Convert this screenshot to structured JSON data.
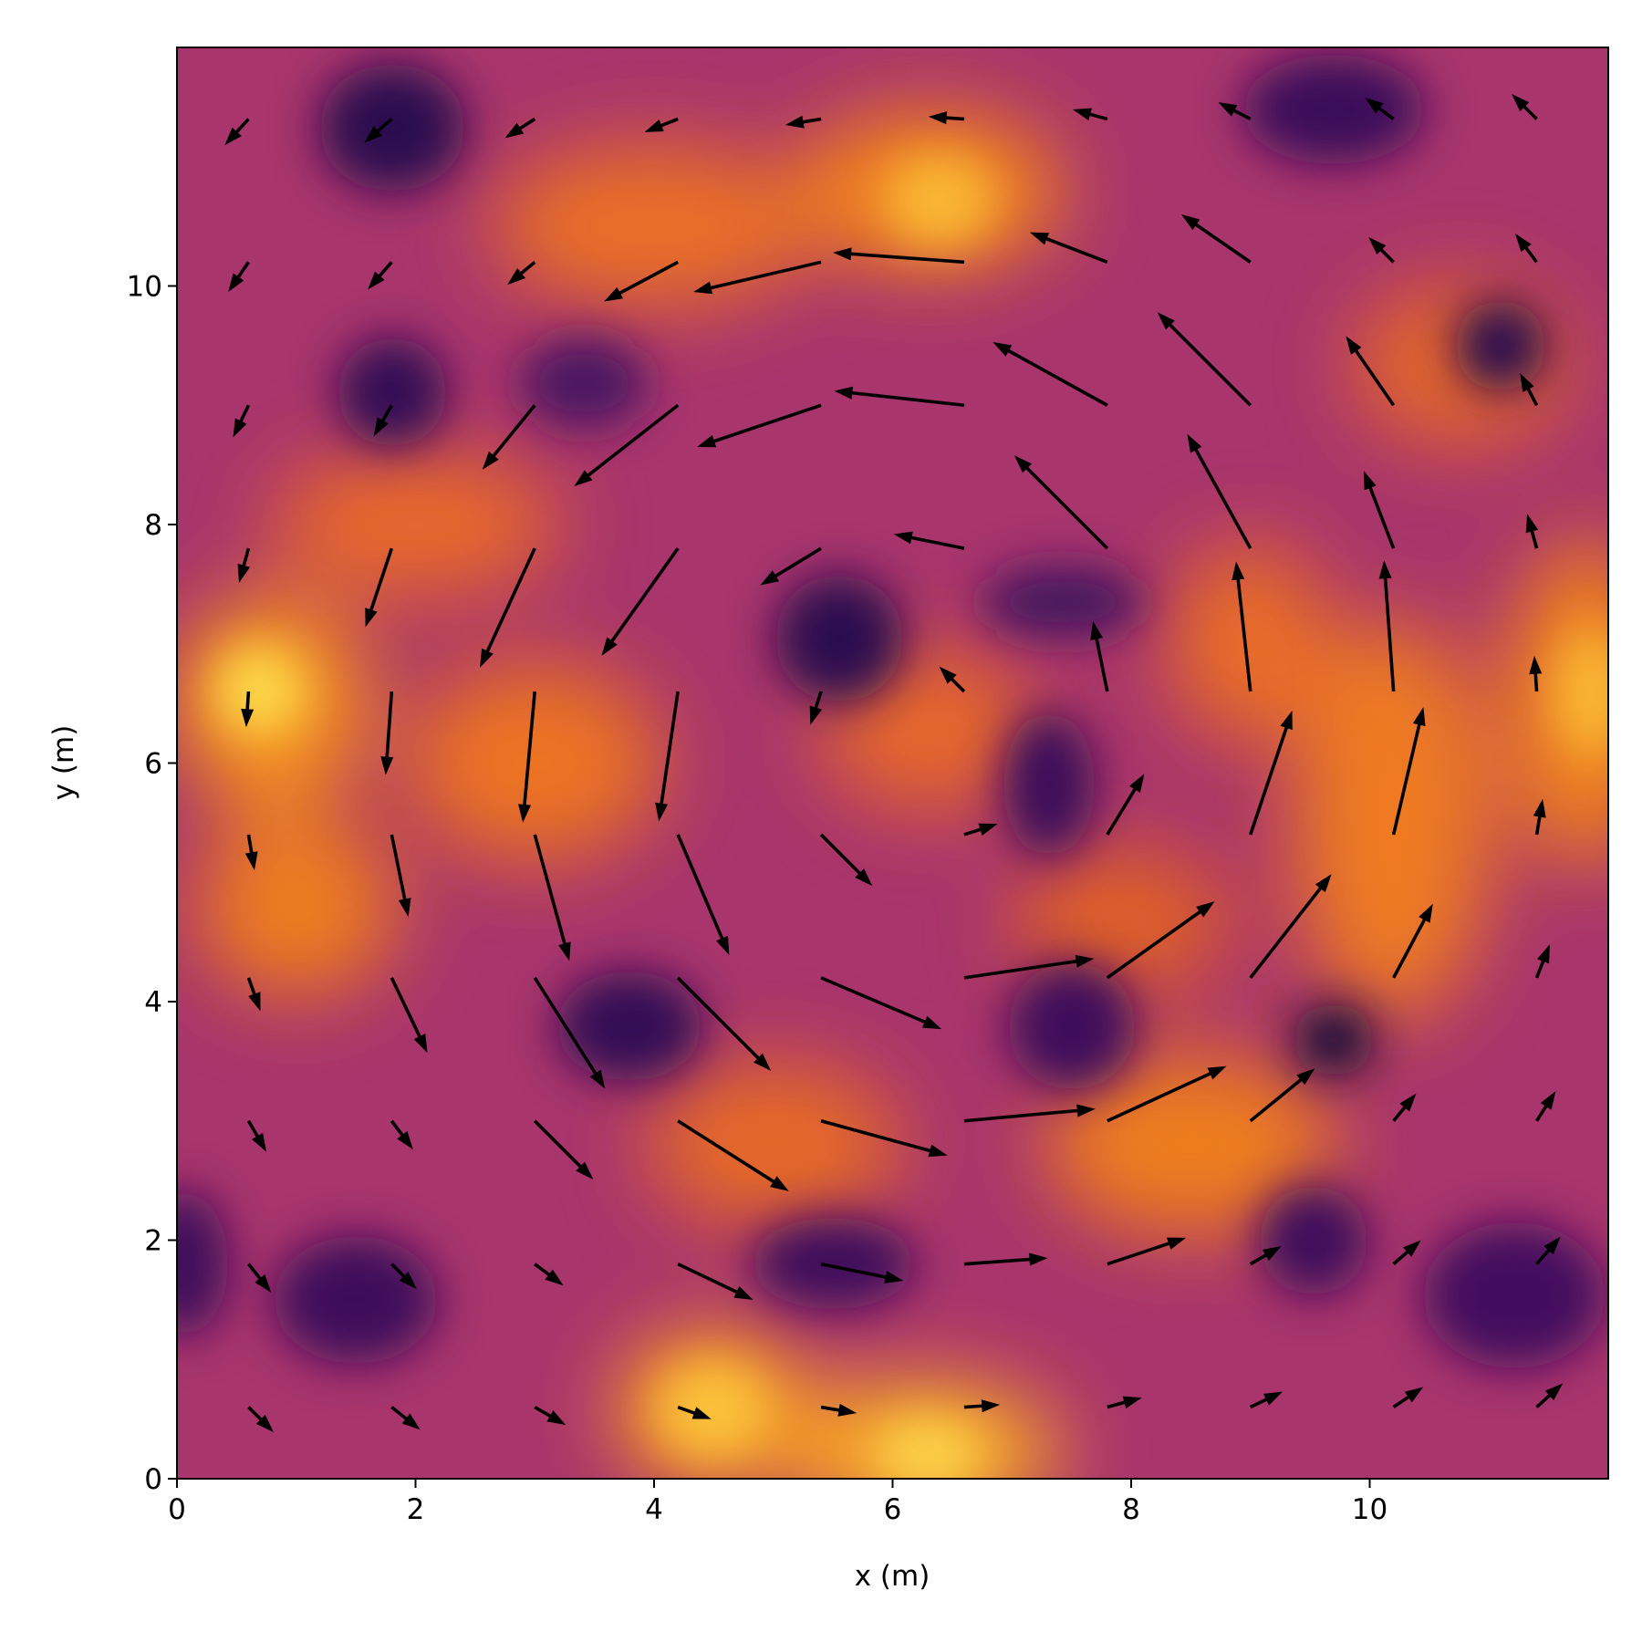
{
  "chart_data": {
    "type": "quiver",
    "xlabel": "x (m)",
    "ylabel": "y (m)",
    "xlim": [
      0,
      12
    ],
    "ylim": [
      0,
      12
    ],
    "xticks": [
      0,
      2,
      4,
      6,
      8,
      10
    ],
    "yticks": [
      0,
      2,
      4,
      6,
      8,
      10
    ],
    "color": "#000000",
    "x": [
      0.6,
      1.8,
      3.0,
      4.2,
      5.4,
      6.6,
      7.8,
      9.0,
      10.2,
      11.4
    ],
    "y": [
      0.6,
      1.8,
      3.0,
      4.2,
      5.4,
      6.6,
      7.8,
      9.0,
      10.2,
      11.4
    ],
    "u": [
      [
        0.21,
        0.24,
        0.26,
        0.28,
        0.3,
        0.3,
        0.29,
        0.27,
        0.25,
        0.22
      ],
      [
        0.19,
        0.21,
        0.24,
        0.63,
        0.69,
        0.7,
        0.66,
        0.26,
        0.23,
        0.2
      ],
      [
        0.15,
        0.18,
        0.49,
        0.93,
        1.06,
        1.1,
        1.0,
        0.54,
        0.19,
        0.16
      ],
      [
        0.1,
        0.3,
        0.59,
        0.78,
        1.01,
        1.09,
        0.9,
        0.68,
        0.33,
        0.11
      ],
      [
        0.05,
        0.14,
        0.29,
        0.43,
        0.43,
        0.28,
        0.31,
        0.35,
        0.25,
        0.05
      ],
      [
        -0.02,
        -0.05,
        -0.1,
        -0.16,
        -0.09,
        -0.21,
        -0.12,
        -0.12,
        -0.08,
        -0.02
      ],
      [
        -0.08,
        -0.22,
        -0.46,
        -0.64,
        -0.51,
        -0.59,
        -0.78,
        -0.53,
        -0.25,
        -0.08
      ],
      [
        -0.13,
        -0.15,
        -0.44,
        -0.87,
        -1.04,
        -1.09,
        -0.96,
        -0.78,
        -0.4,
        -0.14
      ],
      [
        -0.17,
        -0.2,
        -0.23,
        -0.62,
        -1.07,
        -1.1,
        -0.65,
        -0.58,
        -0.21,
        -0.18
      ],
      [
        -0.2,
        -0.23,
        -0.25,
        -0.28,
        -0.3,
        -0.3,
        -0.29,
        -0.27,
        -0.24,
        -0.21
      ]
    ],
    "v": [
      [
        -0.21,
        -0.19,
        -0.15,
        -0.1,
        -0.05,
        0.02,
        0.08,
        0.13,
        0.17,
        0.2
      ],
      [
        -0.24,
        -0.21,
        -0.18,
        -0.3,
        -0.14,
        0.05,
        0.22,
        0.15,
        0.2,
        0.23
      ],
      [
        -0.26,
        -0.24,
        -0.49,
        -0.59,
        -0.29,
        0.1,
        0.46,
        0.44,
        0.23,
        0.25
      ],
      [
        -0.28,
        -0.63,
        -0.93,
        -0.78,
        -0.43,
        0.16,
        0.64,
        0.87,
        0.62,
        0.28
      ],
      [
        -0.3,
        -0.69,
        -1.06,
        -1.01,
        -0.43,
        0.09,
        0.51,
        1.04,
        1.07,
        0.3
      ],
      [
        -0.3,
        -0.7,
        -1.1,
        -1.09,
        -0.28,
        0.21,
        0.59,
        1.09,
        1.1,
        0.3
      ],
      [
        -0.29,
        -0.66,
        -1.0,
        -0.9,
        -0.31,
        0.12,
        0.78,
        0.96,
        0.65,
        0.29
      ],
      [
        -0.27,
        -0.26,
        -0.54,
        -0.68,
        -0.35,
        0.12,
        0.53,
        0.78,
        0.58,
        0.27
      ],
      [
        -0.25,
        -0.23,
        -0.19,
        -0.33,
        -0.25,
        0.08,
        0.25,
        0.4,
        0.21,
        0.24
      ],
      [
        -0.22,
        -0.2,
        -0.16,
        -0.11,
        -0.05,
        0.02,
        0.08,
        0.14,
        0.18,
        0.21
      ]
    ]
  }
}
